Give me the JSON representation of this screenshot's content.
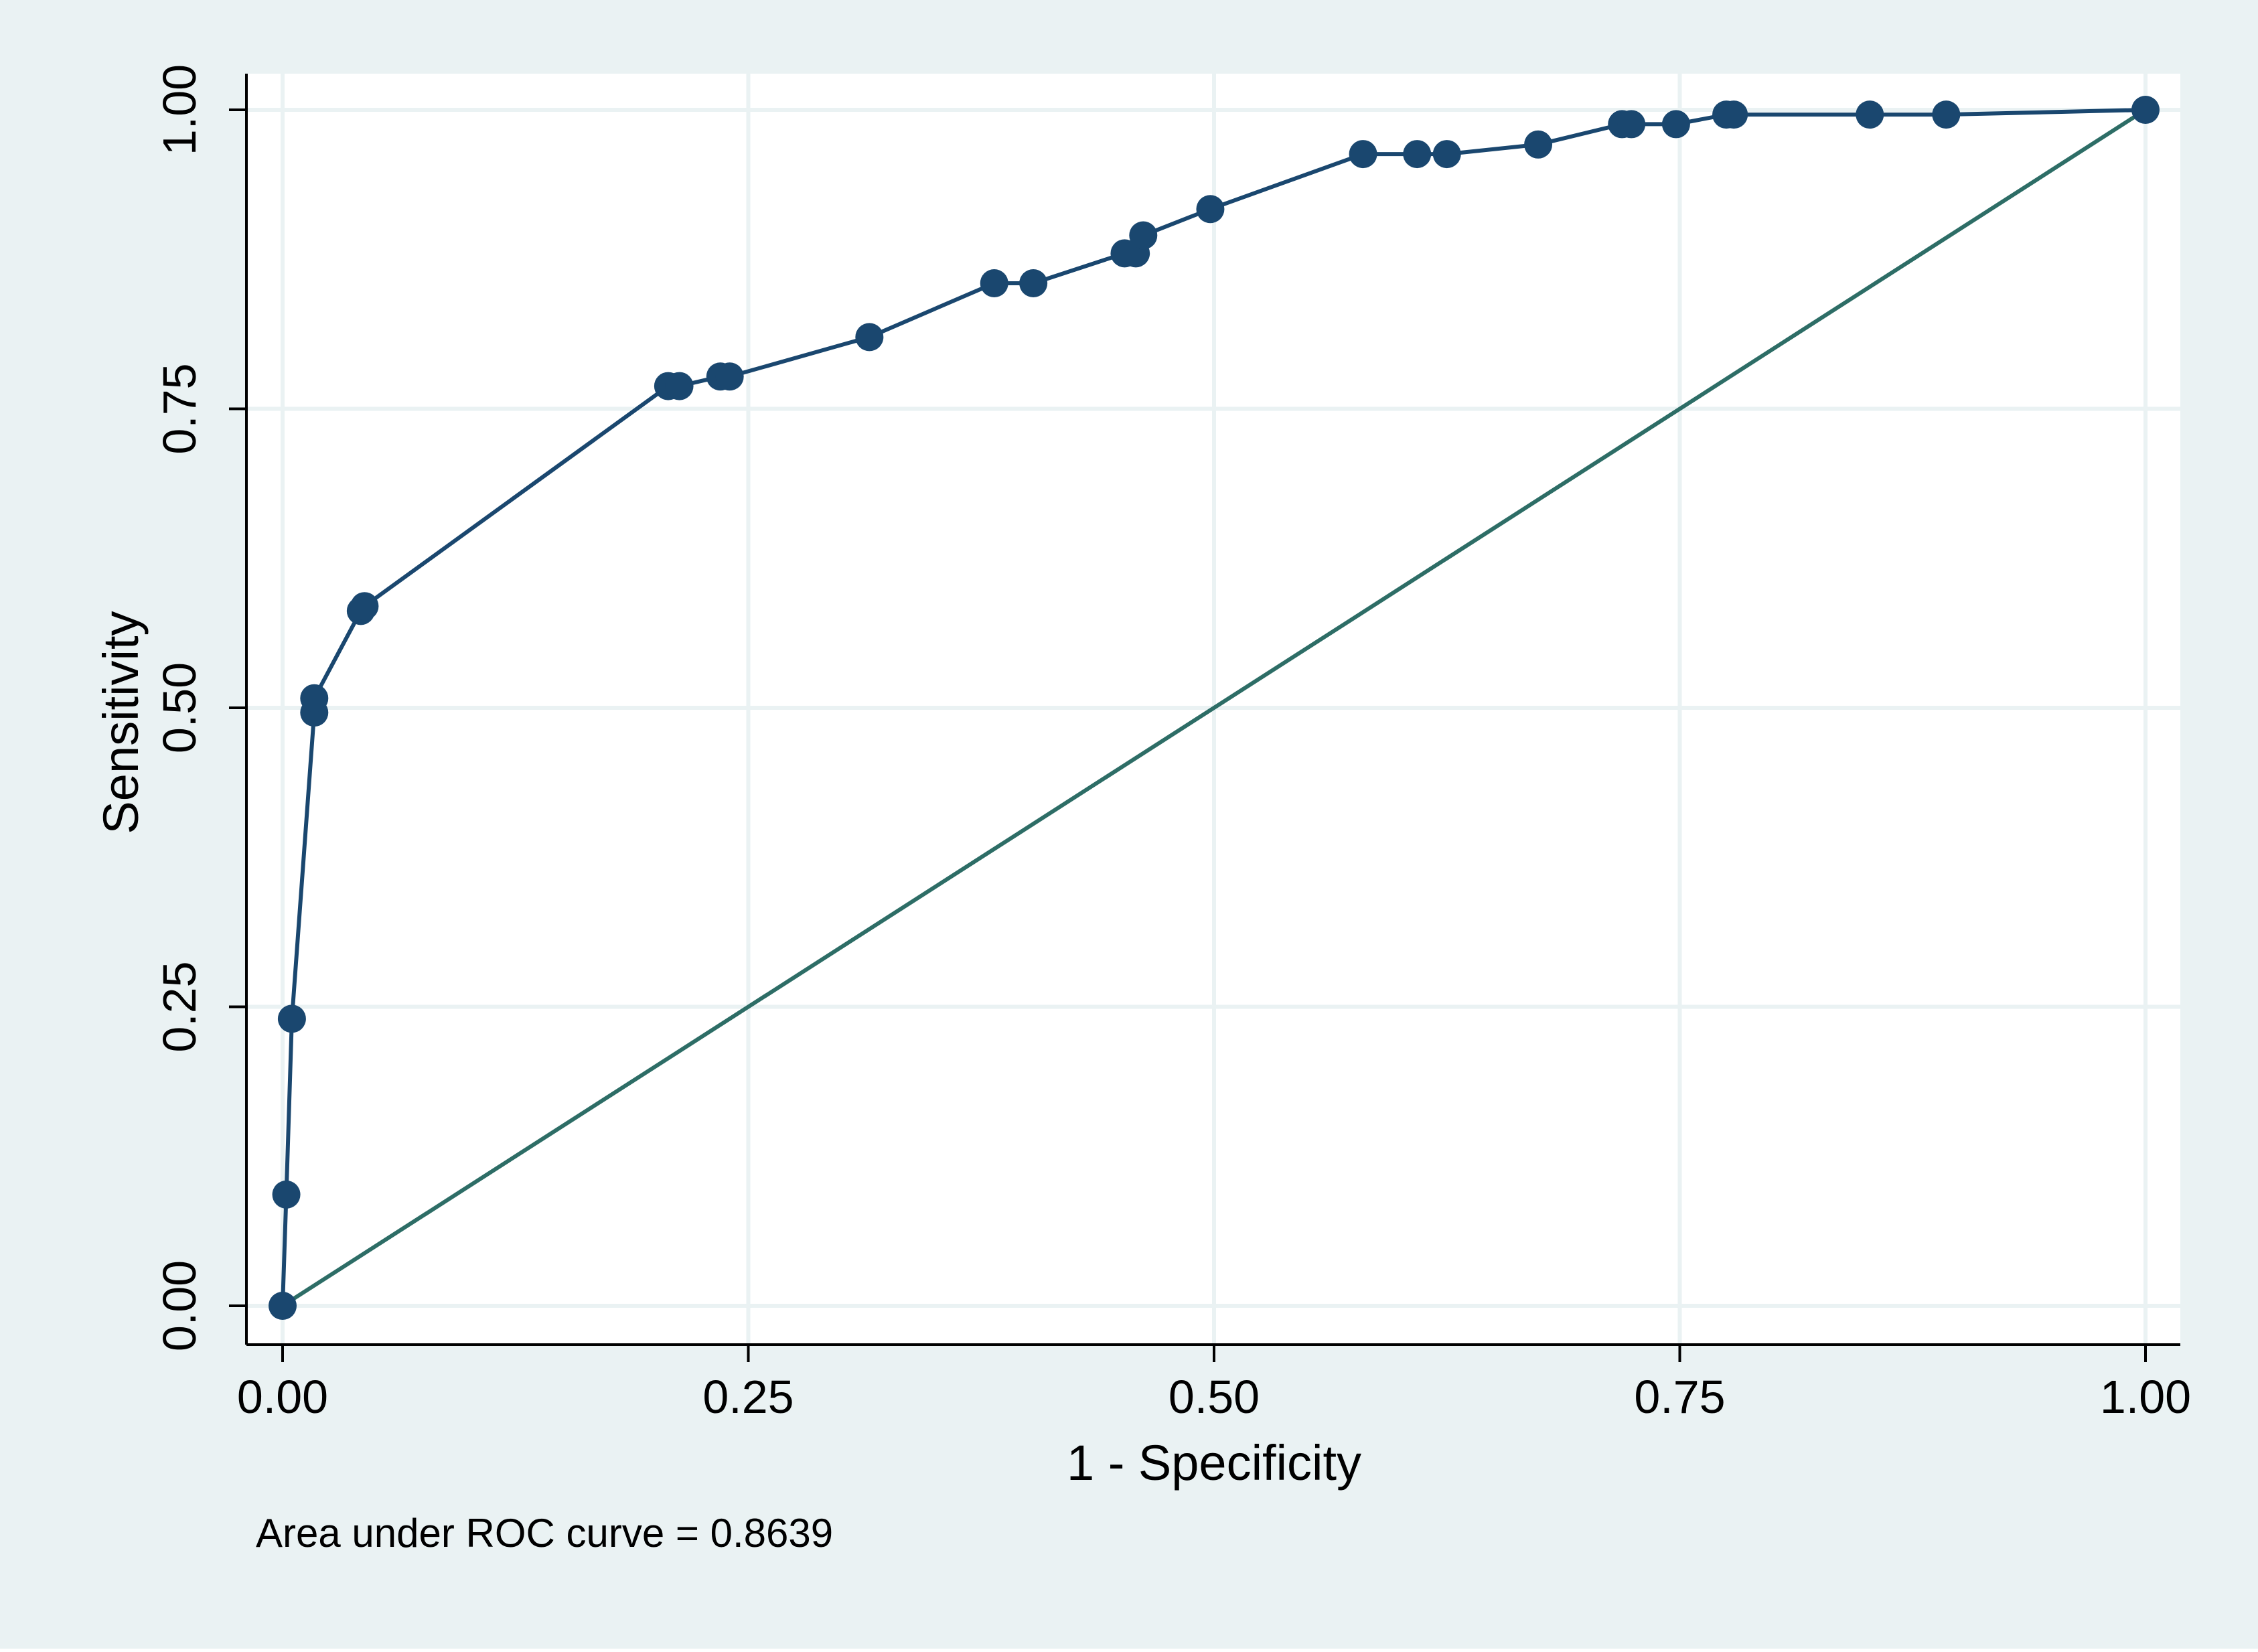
{
  "chart_data": {
    "type": "line",
    "xlabel": "1 - Specificity",
    "ylabel": "Sensitivity",
    "xlim": [
      0,
      1
    ],
    "ylim": [
      0,
      1
    ],
    "x_ticks": [
      "0.00",
      "0.25",
      "0.50",
      "0.75",
      "1.00"
    ],
    "y_ticks": [
      "0.00",
      "0.25",
      "0.50",
      "0.75",
      "1.00"
    ],
    "tick_values": [
      0,
      0.25,
      0.5,
      0.75,
      1
    ],
    "grid": true,
    "legend": "none",
    "annotation": "Area under ROC curve = 0.8639",
    "colors": {
      "outer_background": "#eaf2f3",
      "plot_background": "#ffffff",
      "grid": "#eaf2f3",
      "roc_curve": "#1a476f",
      "reference_line": "#2d6d66"
    },
    "series": [
      {
        "x": [
          0.0,
          0.002,
          0.005,
          0.017,
          0.017,
          0.042,
          0.044,
          0.207,
          0.213,
          0.235,
          0.24,
          0.315,
          0.382,
          0.403,
          0.452,
          0.458,
          0.462,
          0.498,
          0.58,
          0.609,
          0.625,
          0.674,
          0.719,
          0.724,
          0.748,
          0.775,
          0.779,
          0.852,
          0.893,
          1.0
        ],
        "y": [
          0.0,
          0.093,
          0.24,
          0.496,
          0.508,
          0.581,
          0.585,
          0.769,
          0.769,
          0.777,
          0.777,
          0.81,
          0.855,
          0.855,
          0.88,
          0.88,
          0.895,
          0.917,
          0.963,
          0.963,
          0.963,
          0.971,
          0.988,
          0.988,
          0.988,
          0.996,
          0.996,
          0.996,
          0.996,
          1.0
        ]
      },
      {
        "x": [
          0,
          1
        ],
        "y": [
          0,
          1
        ]
      }
    ]
  }
}
